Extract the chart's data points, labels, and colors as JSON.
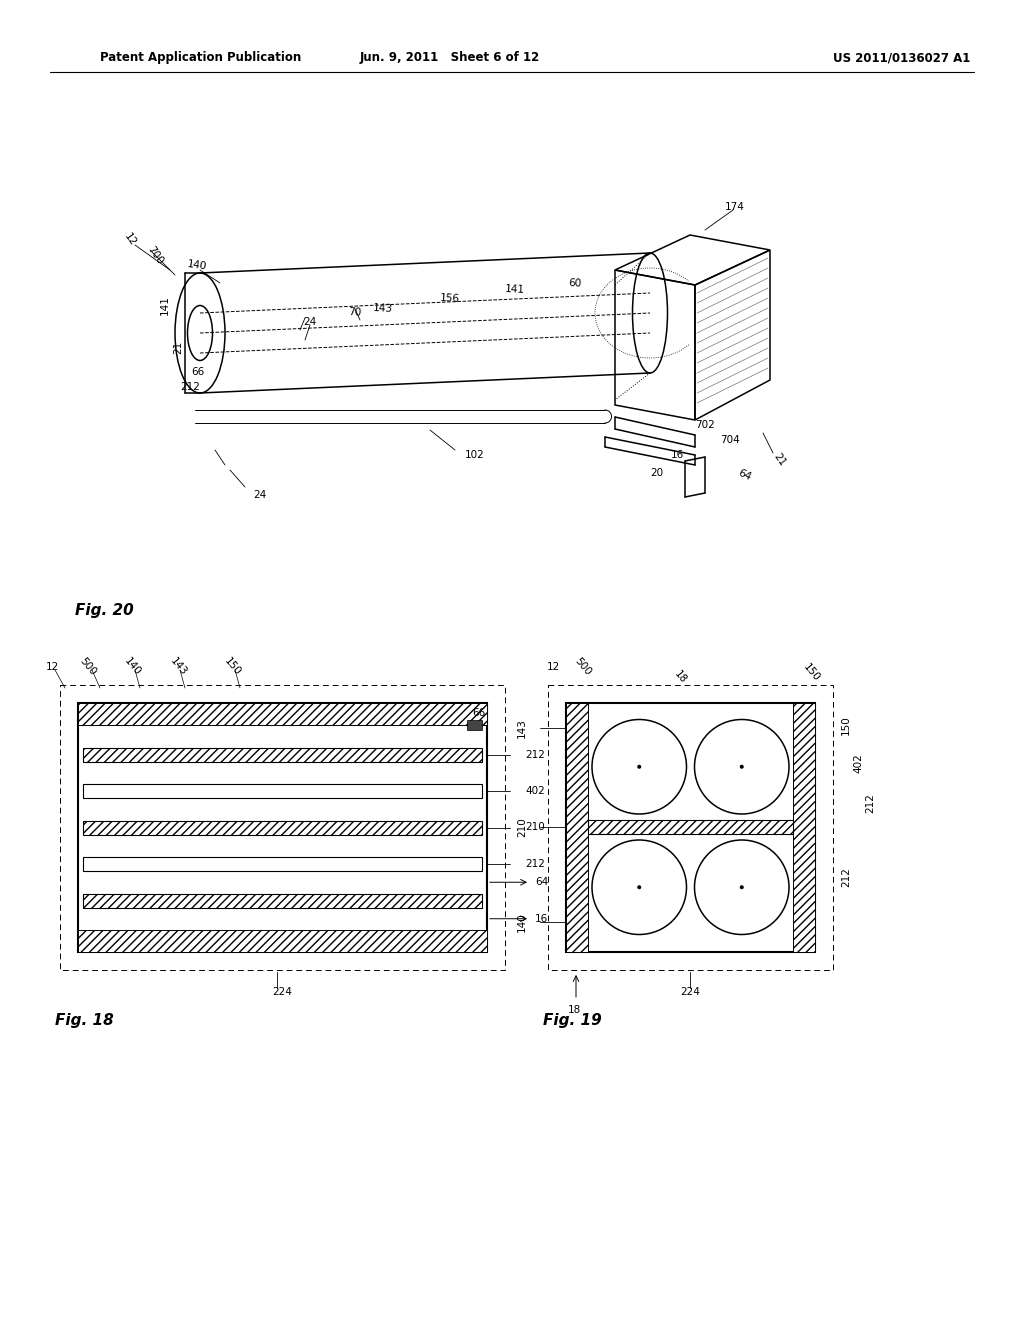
{
  "header_left": "Patent Application Publication",
  "header_center": "Jun. 9, 2011   Sheet 6 of 12",
  "header_right": "US 2011/0136027 A1",
  "fig20_label": "Fig. 20",
  "fig18_label": "Fig. 18",
  "fig19_label": "Fig. 19",
  "background": "#ffffff",
  "line_color": "#000000",
  "hatch_color": "#555555"
}
